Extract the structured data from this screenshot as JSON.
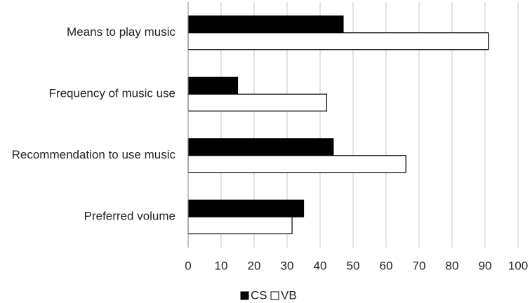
{
  "chart_data": {
    "type": "hbar",
    "categories": [
      "Means to play music",
      "Frequency of music use",
      "Recommendation to use music",
      "Preferred volume"
    ],
    "series": [
      {
        "name": "CS",
        "color": "#000000",
        "values": [
          47,
          15,
          44,
          35
        ]
      },
      {
        "name": "VB",
        "color": "#ffffff",
        "values": [
          91,
          42,
          66,
          31.5
        ]
      }
    ],
    "xlim": [
      0,
      100
    ],
    "xticks": [
      0,
      10,
      20,
      30,
      40,
      50,
      60,
      70,
      80,
      90,
      100
    ],
    "grid": true,
    "legend": "bottom"
  }
}
